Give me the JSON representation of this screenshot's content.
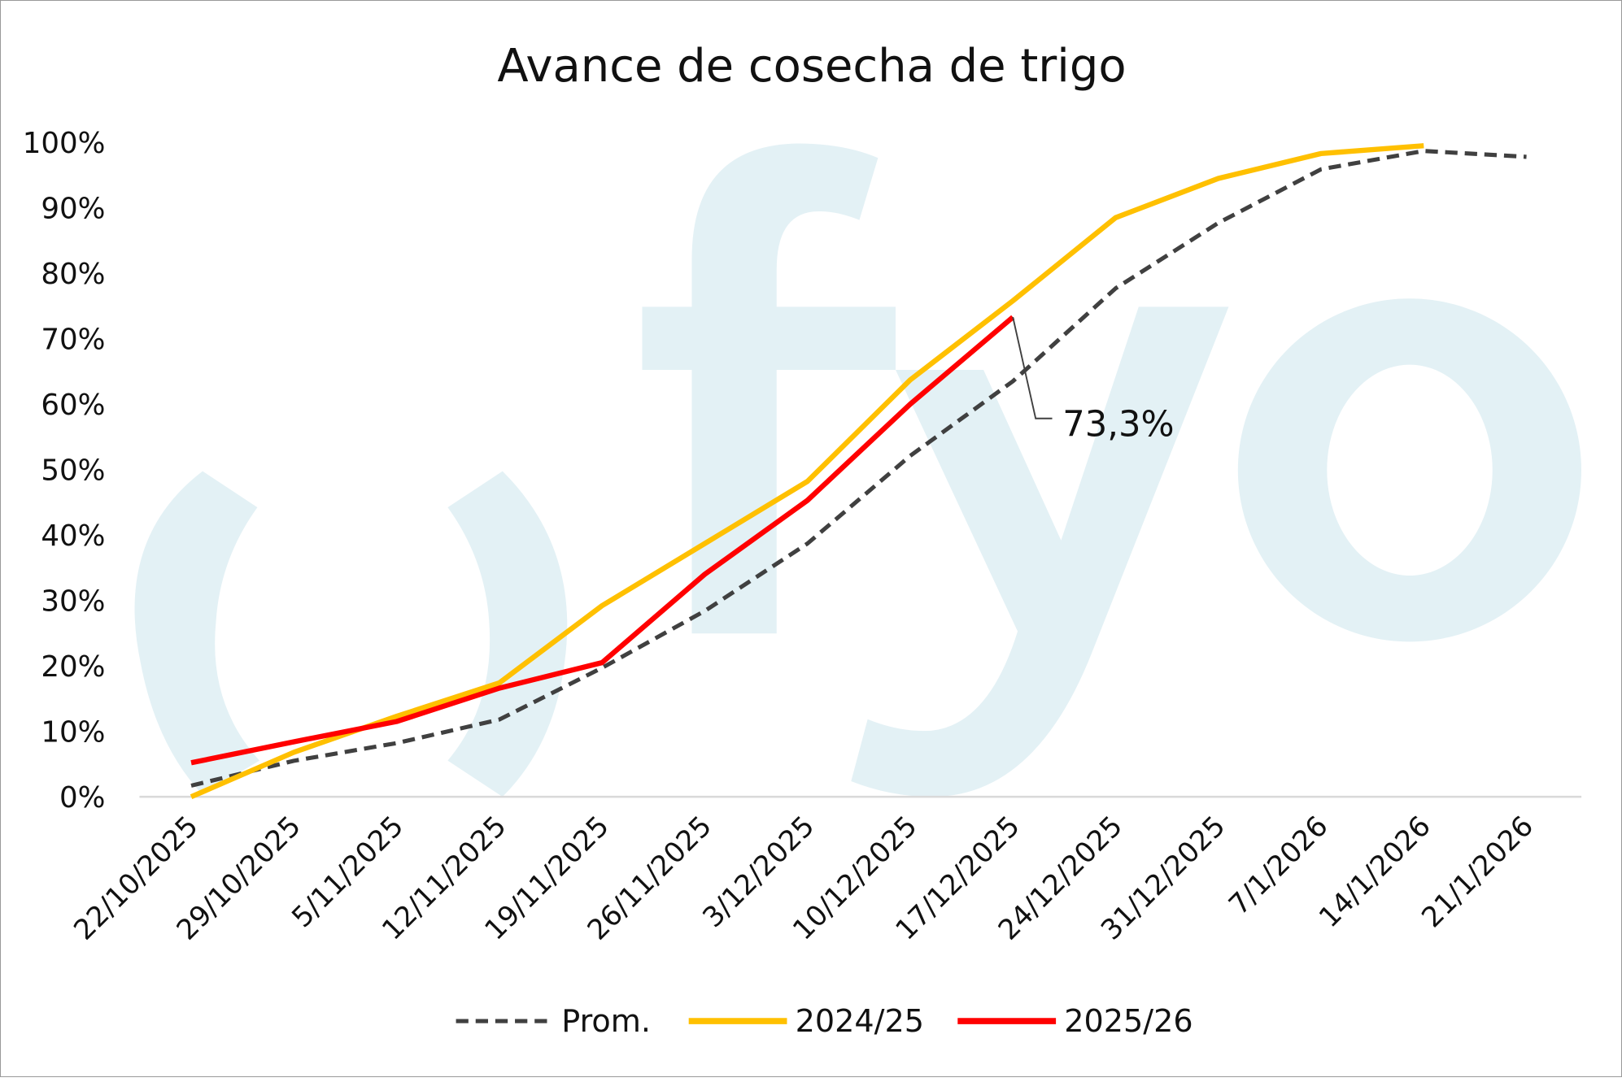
{
  "chart_data": {
    "type": "line",
    "title": "Avance de cosecha de trigo",
    "xlabel": "",
    "ylabel": "",
    "ylim": [
      0,
      100
    ],
    "y_ticks": [
      "0%",
      "10%",
      "20%",
      "30%",
      "40%",
      "50%",
      "60%",
      "70%",
      "80%",
      "90%",
      "100%"
    ],
    "categories": [
      "22/10/2025",
      "29/10/2025",
      "5/11/2025",
      "12/11/2025",
      "19/11/2025",
      "26/11/2025",
      "3/12/2025",
      "10/12/2025",
      "17/12/2025",
      "24/12/2025",
      "31/12/2025",
      "7/1/2026",
      "14/1/2026",
      "21/1/2026"
    ],
    "series": [
      {
        "name": "Prom.",
        "color": "#404040",
        "dashed": true,
        "values": [
          1.7,
          5.5,
          8.2,
          11.8,
          19.7,
          28.4,
          38.7,
          52.1,
          63.5,
          77.7,
          87.7,
          95.9,
          98.7,
          97.8
        ]
      },
      {
        "name": "2024/25",
        "color": "#FFC000",
        "dashed": false,
        "values": [
          0,
          6.8,
          12.3,
          17.4,
          29.2,
          38.7,
          48.2,
          63.7,
          75.8,
          88.5,
          94.5,
          98.3,
          99.5,
          null
        ]
      },
      {
        "name": "2025/26",
        "color": "#FF0000",
        "dashed": false,
        "values": [
          5.2,
          8.4,
          11.5,
          16.6,
          20.5,
          34.0,
          45.3,
          60.0,
          73.3,
          null,
          null,
          null,
          null,
          null
        ]
      }
    ],
    "annotations": [
      {
        "text": "73,3%",
        "series": "2025/26",
        "category": "17/12/2025"
      }
    ],
    "legend_position": "bottom",
    "grid": false,
    "watermark": "fyo"
  }
}
